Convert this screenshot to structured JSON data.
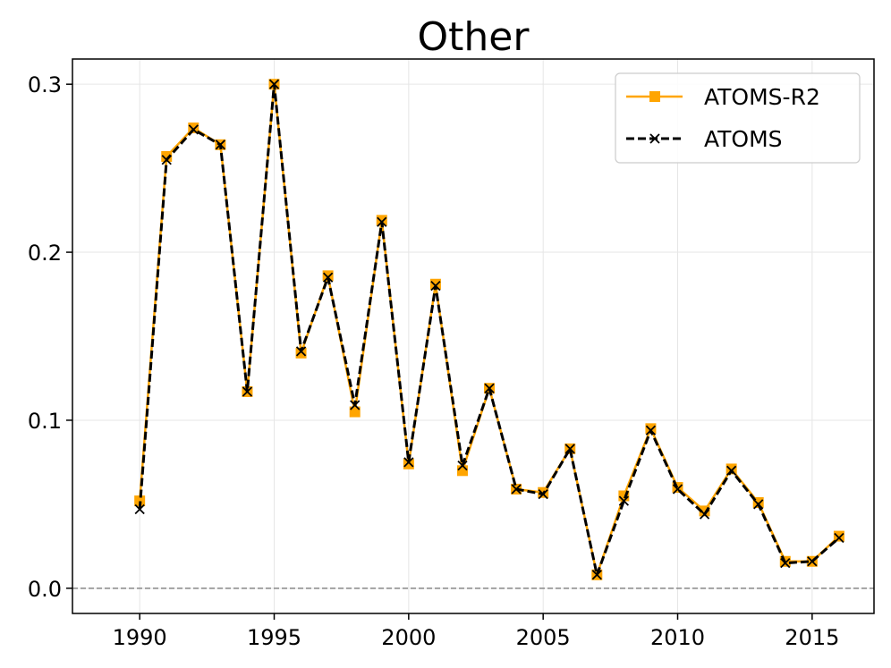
{
  "chart_data": {
    "type": "line",
    "title": "Other",
    "xlabel": "",
    "ylabel": "",
    "xlim": [
      1987.5,
      2017.3
    ],
    "ylim": [
      -0.015,
      0.315
    ],
    "xticks": [
      1990,
      1995,
      2000,
      2005,
      2010,
      2015
    ],
    "xtick_labels": [
      "1990",
      "1995",
      "2000",
      "2005",
      "2010",
      "2015"
    ],
    "yticks": [
      0.0,
      0.1,
      0.2,
      0.3
    ],
    "ytick_labels": [
      "0.0",
      "0.1",
      "0.2",
      "0.3"
    ],
    "grid": true,
    "reference_line": {
      "y": 0.0,
      "style": "dashed",
      "color": "#888888"
    },
    "legend_position": "top-right",
    "x": [
      1990,
      1991,
      1992,
      1993,
      1994,
      1995,
      1996,
      1997,
      1998,
      1999,
      2000,
      2001,
      2002,
      2003,
      2004,
      2005,
      2006,
      2007,
      2008,
      2009,
      2010,
      2011,
      2012,
      2013,
      2014,
      2015,
      2016
    ],
    "series": [
      {
        "name": "ATOMS-R2",
        "color": "#FFA500",
        "line_style": "solid",
        "marker": "square",
        "values": [
          0.052,
          0.257,
          0.274,
          0.264,
          0.117,
          0.3,
          0.14,
          0.186,
          0.105,
          0.219,
          0.074,
          0.181,
          0.07,
          0.119,
          0.059,
          0.057,
          0.083,
          0.008,
          0.055,
          0.095,
          0.06,
          0.046,
          0.071,
          0.051,
          0.016,
          0.016,
          0.031
        ]
      },
      {
        "name": "ATOMS",
        "color": "#000000",
        "line_style": "dashed",
        "marker": "x",
        "values": [
          0.047,
          0.255,
          0.273,
          0.264,
          0.117,
          0.3,
          0.141,
          0.185,
          0.109,
          0.218,
          0.075,
          0.18,
          0.073,
          0.119,
          0.059,
          0.056,
          0.083,
          0.008,
          0.052,
          0.094,
          0.059,
          0.044,
          0.07,
          0.05,
          0.015,
          0.016,
          0.03
        ]
      }
    ]
  }
}
